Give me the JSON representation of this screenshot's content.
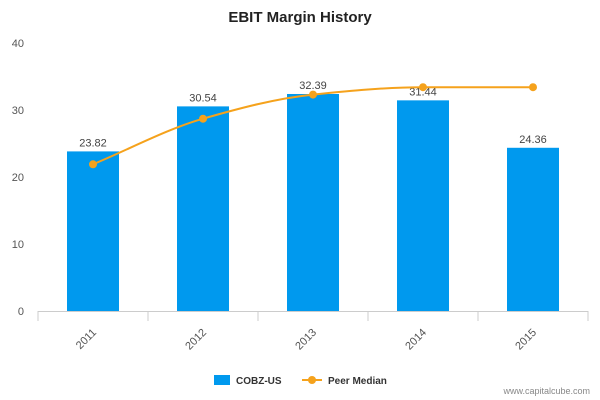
{
  "chart_data": {
    "type": "bar",
    "title": "EBIT Margin History",
    "xlabel": "",
    "ylabel": "",
    "categories": [
      "2011",
      "2012",
      "2013",
      "2014",
      "2015"
    ],
    "ylim": [
      0,
      40
    ],
    "yticks": [
      0,
      10,
      20,
      30,
      40
    ],
    "grid": false,
    "legend_position": "bottom-center",
    "series": [
      {
        "name": "COBZ-US",
        "type": "bar",
        "color": "#0099ee",
        "values": [
          23.82,
          30.54,
          32.39,
          31.44,
          24.36
        ],
        "labels": [
          "23.82",
          "30.54",
          "32.39",
          "31.44",
          "24.36"
        ]
      },
      {
        "name": "Peer Median",
        "type": "line",
        "smooth": true,
        "color": "#f5a21c",
        "values": [
          21.9,
          28.7,
          32.3,
          33.4,
          33.4
        ]
      }
    ]
  },
  "credit": "www.capitalcube.com"
}
